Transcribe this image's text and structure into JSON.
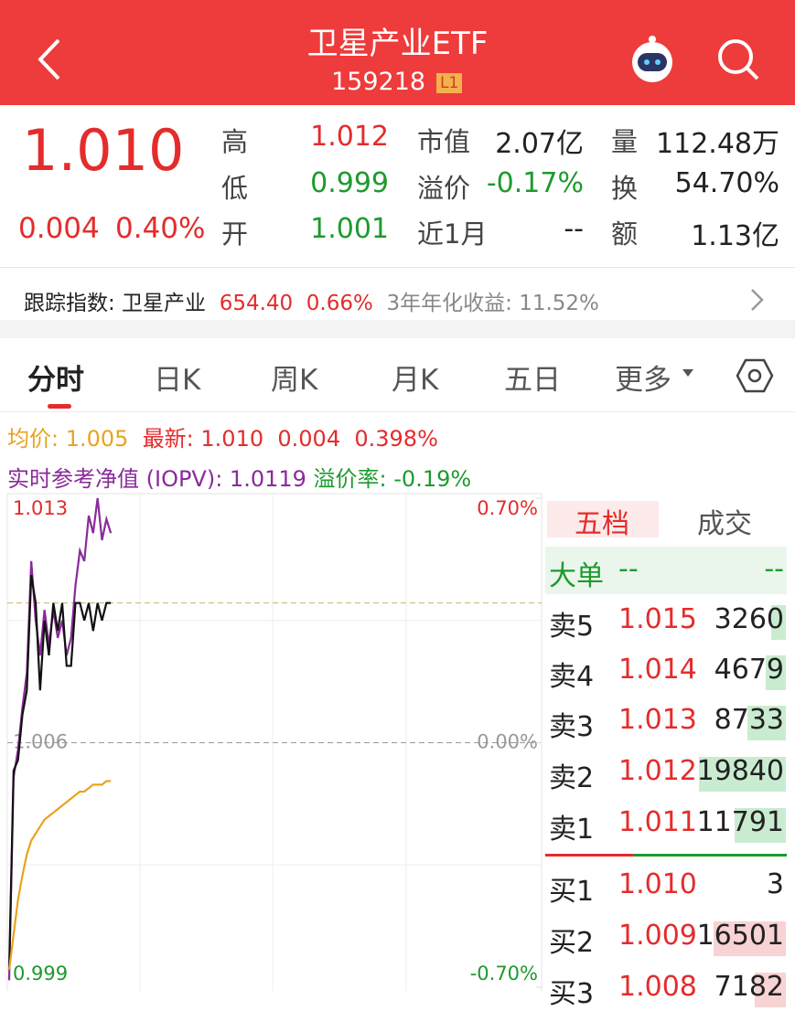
{
  "header": {
    "title": "卫星产业ETF",
    "code": "159218",
    "badge": "L1"
  },
  "quote": {
    "price": "1.010",
    "change": "0.004",
    "change_pct": "0.40%",
    "stats": [
      {
        "label": "高",
        "value": "1.012"
      },
      {
        "label": "低",
        "value": "0.999"
      },
      {
        "label": "开",
        "value": "1.001"
      },
      {
        "label": "市值",
        "value": "2.07亿"
      },
      {
        "label": "溢价",
        "value": "-0.17%"
      },
      {
        "label": "近1月",
        "value": "--"
      },
      {
        "label": "量",
        "value": "112.48万"
      },
      {
        "label": "换",
        "value": "54.70%"
      },
      {
        "label": "额",
        "value": "1.13亿"
      }
    ]
  },
  "tracking": {
    "label": "跟踪指数: 卫星产业",
    "value": "654.40",
    "change": "0.66%",
    "annual_return": "3年年化收益: 11.52%"
  },
  "tabs": [
    "分时",
    "日K",
    "周K",
    "月K",
    "五日",
    "更多"
  ],
  "info": {
    "avg": "均价: 1.005",
    "latest": "最新: 1.010",
    "change": "0.004",
    "change_pct": "0.398%",
    "iopv": "实时参考净值 (IOPV): 1.0119",
    "premium": "溢价率: -0.19%"
  },
  "chart_data": {
    "type": "line",
    "x": [
      0,
      2,
      4,
      6,
      8,
      10,
      12,
      14,
      16,
      18,
      20,
      22,
      24,
      26,
      28,
      30,
      32,
      34,
      36,
      38,
      40,
      42,
      44,
      46
    ],
    "xlim": [
      0,
      240
    ],
    "ylim": [
      0.999,
      1.013
    ],
    "yticks": [
      0.999,
      1.006,
      1.013
    ],
    "y2lim": [
      -0.7,
      0.7
    ],
    "y2ticks": [
      {
        "value": -0.7,
        "label": "-0.70%"
      },
      {
        "value": 0,
        "label": "0.00%"
      },
      {
        "value": 0.7,
        "label": "0.70%"
      }
    ],
    "series": [
      {
        "color": "#8a2b9a",
        "values": [
          0.9992,
          1.005,
          1.0058,
          1.007,
          1.008,
          1.0112,
          1.0095,
          1.0085,
          1.0098,
          1.0088,
          1.0098,
          1.009,
          1.0095,
          1.0085,
          1.009,
          1.0105,
          1.0115,
          1.0112,
          1.0125,
          1.012,
          1.013,
          1.0118,
          1.0124,
          1.012
        ]
      },
      {
        "color": "#111111",
        "values": [
          0.9995,
          1.0052,
          1.0055,
          1.0068,
          1.0075,
          1.0108,
          1.01,
          1.0075,
          1.0095,
          1.0085,
          1.01,
          1.0092,
          1.01,
          1.0082,
          1.0082,
          1.01,
          1.01,
          1.0095,
          1.01,
          1.0092,
          1.01,
          1.0095,
          1.01,
          1.01
        ]
      },
      {
        "color": "#e8a320",
        "values": [
          0.9995,
          1.0005,
          1.0015,
          1.0022,
          1.0028,
          1.0032,
          1.0034,
          1.0036,
          1.0038,
          1.0039,
          1.004,
          1.0041,
          1.0042,
          1.0043,
          1.0044,
          1.0045,
          1.0046,
          1.0046,
          1.0047,
          1.0048,
          1.0048,
          1.0048,
          1.0049,
          1.0049
        ]
      }
    ]
  },
  "order_book": {
    "tabs": [
      "五档",
      "成交"
    ],
    "big_order": {
      "label": "大单",
      "buy": "--",
      "sell": "--"
    },
    "asks": [
      {
        "label": "卖5",
        "price": "1.015",
        "volume": 3260
      },
      {
        "label": "卖4",
        "price": "1.014",
        "volume": 4679
      },
      {
        "label": "卖3",
        "price": "1.013",
        "volume": 8733
      },
      {
        "label": "卖2",
        "price": "1.012",
        "volume": 19840
      },
      {
        "label": "卖1",
        "price": "1.011",
        "volume": 11791
      }
    ],
    "bids": [
      {
        "label": "买1",
        "price": "1.010",
        "volume": 3
      },
      {
        "label": "买2",
        "price": "1.009",
        "volume": 16501
      },
      {
        "label": "买3",
        "price": "1.008",
        "volume": 7182
      }
    ]
  }
}
